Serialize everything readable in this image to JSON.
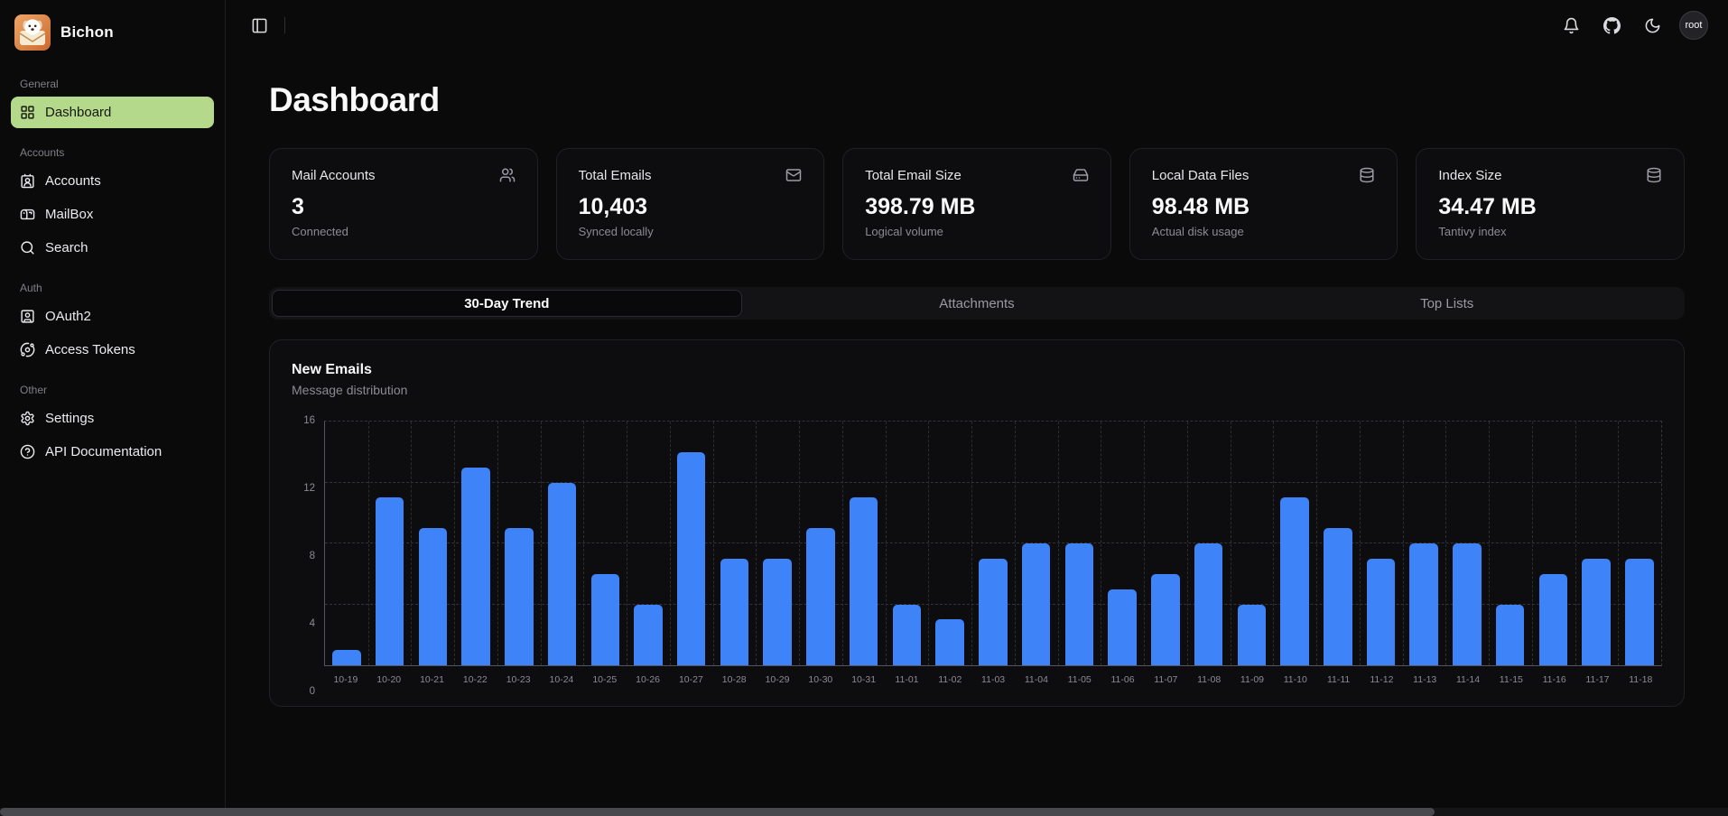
{
  "app": {
    "name": "Bichon"
  },
  "page": {
    "title": "Dashboard"
  },
  "topbar": {
    "user_label": "root"
  },
  "sidebar": {
    "groups": [
      {
        "label": "General",
        "items": [
          {
            "label": "Dashboard",
            "icon": "dashboard-icon",
            "active": true
          }
        ]
      },
      {
        "label": "Accounts",
        "items": [
          {
            "label": "Accounts",
            "icon": "contact-icon"
          },
          {
            "label": "MailBox",
            "icon": "mailbox-icon"
          },
          {
            "label": "Search",
            "icon": "search-icon"
          }
        ]
      },
      {
        "label": "Auth",
        "items": [
          {
            "label": "OAuth2",
            "icon": "oauth-icon"
          },
          {
            "label": "Access Tokens",
            "icon": "tokens-icon"
          }
        ]
      },
      {
        "label": "Other",
        "items": [
          {
            "label": "Settings",
            "icon": "settings-icon"
          },
          {
            "label": "API Documentation",
            "icon": "api-docs-icon"
          }
        ]
      }
    ]
  },
  "stats": [
    {
      "label": "Mail Accounts",
      "value": "3",
      "sub": "Connected",
      "icon": "users-icon"
    },
    {
      "label": "Total Emails",
      "value": "10,403",
      "sub": "Synced locally",
      "icon": "mail-icon"
    },
    {
      "label": "Total Email Size",
      "value": "398.79 MB",
      "sub": "Logical volume",
      "icon": "hard-drive-icon"
    },
    {
      "label": "Local Data Files",
      "value": "98.48 MB",
      "sub": "Actual disk usage",
      "icon": "database-icon"
    },
    {
      "label": "Index Size",
      "value": "34.47 MB",
      "sub": "Tantivy index",
      "icon": "database-icon"
    }
  ],
  "tabs": [
    {
      "label": "30-Day Trend",
      "active": true
    },
    {
      "label": "Attachments",
      "active": false
    },
    {
      "label": "Top Lists",
      "active": false
    }
  ],
  "chart_card": {
    "title": "New Emails",
    "subtitle": "Message distribution"
  },
  "colors": {
    "accent_green": "#b5d98b",
    "bar_blue": "#3e83f8"
  },
  "chart_data": {
    "type": "bar",
    "title": "New Emails",
    "subtitle": "Message distribution",
    "categories": [
      "10-19",
      "10-20",
      "10-21",
      "10-22",
      "10-23",
      "10-24",
      "10-25",
      "10-26",
      "10-27",
      "10-28",
      "10-29",
      "10-30",
      "10-31",
      "11-01",
      "11-02",
      "11-03",
      "11-04",
      "11-05",
      "11-06",
      "11-07",
      "11-08",
      "11-09",
      "11-10",
      "11-11",
      "11-12",
      "11-13",
      "11-14",
      "11-15",
      "11-16",
      "11-17",
      "11-18"
    ],
    "values": [
      1,
      11,
      9,
      13,
      9,
      12,
      6,
      4,
      14,
      7,
      7,
      9,
      11,
      4,
      3,
      7,
      8,
      8,
      5,
      6,
      8,
      4,
      11,
      9,
      7,
      8,
      8,
      4,
      6,
      7,
      7
    ],
    "ylim": [
      0,
      16
    ],
    "yticks": [
      0,
      4,
      8,
      12,
      16
    ],
    "bar_color": "#3e83f8",
    "grid": true,
    "legend": false
  }
}
